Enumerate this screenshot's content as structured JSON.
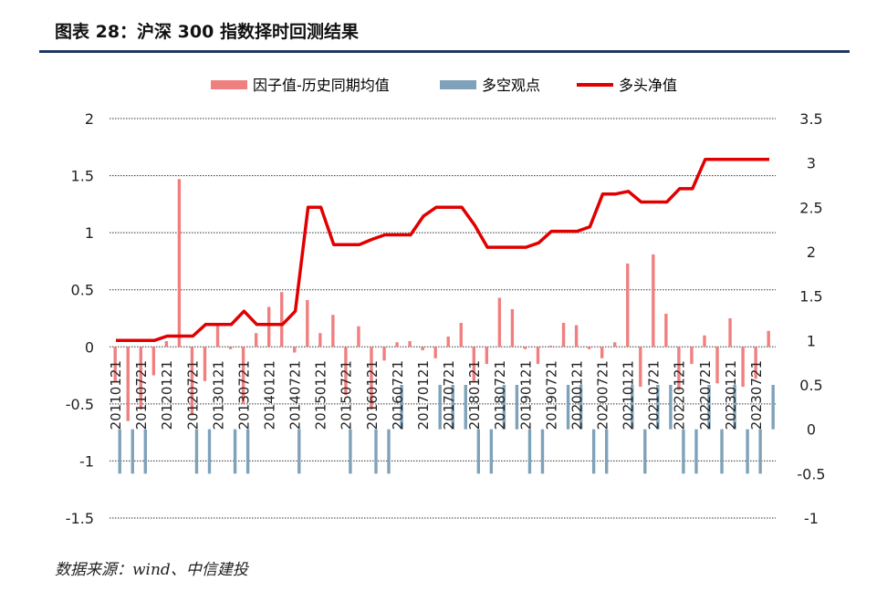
{
  "header": {
    "title": "图表 28：沪深 300 指数择时回测结果"
  },
  "footer": {
    "source": "数据来源：wind、中信建投"
  },
  "colors": {
    "factor": "#f08080",
    "view": "#7fa2ba",
    "nav": "#e00000",
    "grid": "#333333",
    "title_rule": "#1f3864"
  },
  "chart_data": {
    "type": "bar",
    "legend": {
      "position": "top",
      "items": [
        "因子值-历史同期均值",
        "多空观点",
        "多头净值"
      ]
    },
    "left_axis": {
      "ylim": [
        -1.5,
        2
      ],
      "ticks": [
        "2",
        "1.5",
        "1",
        "0.5",
        "0",
        "-0.5",
        "-1",
        "-1.5"
      ]
    },
    "right_axis": {
      "ylim": [
        -1,
        3.5
      ],
      "ticks": [
        "3.5",
        "3",
        "2.5",
        "2",
        "1.5",
        "1",
        "0.5",
        "0",
        "-0.5",
        "-1"
      ]
    },
    "x_labels": [
      "20110121",
      "20110721",
      "20120121",
      "20120721",
      "20130121",
      "20130721",
      "20140121",
      "20140721",
      "20150121",
      "20150721",
      "20160121",
      "20160721",
      "20170121",
      "20170721",
      "20180121",
      "20180721",
      "20190121",
      "20190721",
      "20200121",
      "20200721",
      "20210121",
      "20210721",
      "20220121",
      "20220721",
      "20230121",
      "20230721"
    ],
    "series": [
      {
        "name": "因子值-历史同期均值",
        "type": "bar",
        "axis": "left",
        "values": [
          -0.3,
          -0.65,
          -0.55,
          -0.25,
          0.05,
          1.47,
          -0.6,
          -0.3,
          0.2,
          -0.02,
          -0.5,
          0.12,
          0.35,
          0.48,
          -0.05,
          0.41,
          0.12,
          0.28,
          -0.42,
          0.18,
          -0.55,
          -0.12,
          0.04,
          0.05,
          -0.03,
          -0.1,
          0.09,
          0.21,
          -0.3,
          -0.15,
          0.43,
          0.33,
          -0.02,
          -0.15,
          0.01,
          0.21,
          0.19,
          -0.02,
          -0.1,
          0.04,
          0.73,
          -0.35,
          0.81,
          0.29,
          -0.38,
          -0.15,
          0.1,
          -0.32,
          0.25,
          -0.35,
          -0.28,
          0.14
        ]
      },
      {
        "name": "多空观点",
        "type": "bar",
        "axis": "right",
        "values": [
          -0.5,
          -0.5,
          -0.5,
          0,
          0,
          0,
          -0.5,
          -0.5,
          0,
          -0.5,
          -0.5,
          0,
          0,
          0,
          -0.5,
          0,
          0,
          0,
          -0.5,
          0,
          -0.5,
          -0.5,
          0.5,
          0,
          0,
          0.5,
          0.5,
          0.5,
          -0.5,
          -0.5,
          0.5,
          0.5,
          -0.5,
          -0.5,
          0,
          0.5,
          0.5,
          -0.5,
          -0.5,
          0,
          0.5,
          -0.5,
          0.5,
          0.5,
          -0.5,
          -0.5,
          0.5,
          -0.5,
          0.5,
          -0.5,
          -0.5,
          0.5
        ]
      },
      {
        "name": "多头净值",
        "type": "line",
        "axis": "right",
        "values": [
          1,
          1,
          1,
          1,
          1.05,
          1.05,
          1.05,
          1.18,
          1.18,
          1.18,
          1.33,
          1.18,
          1.18,
          1.18,
          1.33,
          2.5,
          2.5,
          2.08,
          2.08,
          2.08,
          2.14,
          2.19,
          2.19,
          2.19,
          2.4,
          2.5,
          2.5,
          2.5,
          2.3,
          2.05,
          2.05,
          2.05,
          2.05,
          2.1,
          2.23,
          2.23,
          2.23,
          2.28,
          2.65,
          2.65,
          2.68,
          2.56,
          2.56,
          2.56,
          2.71,
          2.71,
          3.04,
          3.04,
          3.04,
          3.04,
          3.04,
          3.04
        ]
      }
    ]
  }
}
